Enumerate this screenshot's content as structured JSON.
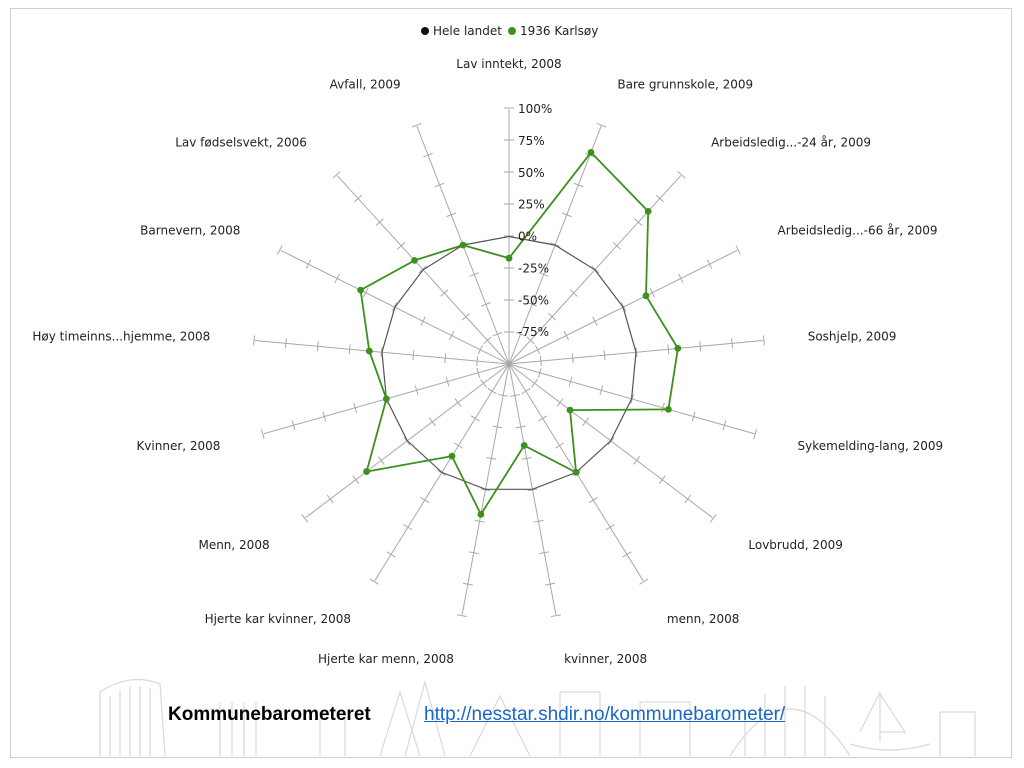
{
  "footer": {
    "title": "Kommunebarometeret",
    "link": "http://nesstar.shdir.no/kommunebarometer/"
  },
  "colors": {
    "national": "#555555",
    "local": "#3f8f1e",
    "spoke": "#a8a8a8",
    "text": "#222222"
  },
  "chart_data": {
    "type": "radar",
    "title": "",
    "legend": {
      "position": "top-center",
      "entries": [
        {
          "name": "Hele landet",
          "color": "#111111"
        },
        {
          "name": "1936 Karlsøy",
          "color": "#3f8f1e"
        }
      ]
    },
    "range": [
      -100,
      100
    ],
    "tick_labels": [
      "100%",
      "75%",
      "50%",
      "25%",
      "0%",
      "-25%",
      "-50%",
      "-75%"
    ],
    "tick_values": [
      100,
      75,
      50,
      25,
      0,
      -25,
      -50,
      -75
    ],
    "categories": [
      "Lav inntekt, 2008",
      "Bare grunnskole, 2009",
      "Arbeidsledig...-24 år, 2009",
      "Arbeidsledig...-66 år, 2009",
      "Soshjelp, 2009",
      "Sykemelding-lang, 2009",
      "Lovbrudd, 2009",
      "menn, 2008",
      "kvinner, 2008",
      "Hjerte kar menn, 2008",
      "Hjerte kar kvinner, 2008",
      "Menn, 2008",
      "Kvinner, 2008",
      "Høy timeinns...hjemme, 2008",
      "Barnevern, 2008",
      "Lav fødselsvekt, 2006",
      "Avfall, 2009"
    ],
    "series": [
      {
        "name": "Hele landet",
        "values": [
          0,
          0,
          0,
          0,
          0,
          0,
          0,
          0,
          0,
          0,
          0,
          0,
          0,
          0,
          0,
          0,
          0
        ]
      },
      {
        "name": "1936 Karlsøy",
        "values": [
          -17,
          78,
          62,
          20,
          33,
          30,
          -40,
          0,
          -35,
          20,
          -15,
          40,
          0,
          10,
          30,
          10,
          0
        ]
      }
    ]
  }
}
